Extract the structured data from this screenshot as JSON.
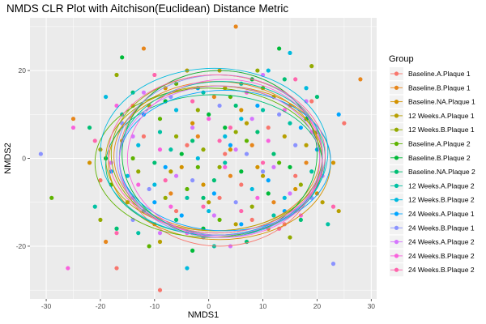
{
  "chart_data": {
    "type": "scatter",
    "title": "NMDS CLR Plot with Aitchison(Euclidean) Distance Metric",
    "xlabel": "NMDS1",
    "ylabel": "NMDS2",
    "xlim": [
      -33,
      31
    ],
    "ylim": [
      -32,
      32
    ],
    "xticks": [
      -30,
      -20,
      -10,
      0,
      10,
      20,
      30
    ],
    "yticks": [
      -20,
      0,
      20
    ],
    "grid": true,
    "legend": {
      "title": "Group",
      "position": "right"
    },
    "series": [
      {
        "name": "Baseline.A.Plaque 1",
        "color": "#F8766D",
        "ellipse": {
          "cx": 2.0,
          "cy": 0.0,
          "rx": 18.5,
          "ry": 20.0
        },
        "points": [
          [
            -17,
            -25
          ],
          [
            8,
            -14
          ],
          [
            19,
            13
          ],
          [
            14,
            -15
          ],
          [
            -9,
            -30
          ],
          [
            -4,
            3
          ],
          [
            3,
            1
          ],
          [
            6,
            -6
          ],
          [
            -12,
            5
          ],
          [
            11,
            7
          ],
          [
            25,
            8
          ],
          [
            2,
            -9
          ],
          [
            -6,
            -12
          ],
          [
            16,
            -4
          ],
          [
            -20,
            -5
          ]
        ]
      },
      {
        "name": "Baseline.B.Plaque 1",
        "color": "#E7861B",
        "ellipse": {
          "cx": 1.5,
          "cy": 0.5,
          "rx": 19.0,
          "ry": 17.0
        },
        "points": [
          [
            5,
            30
          ],
          [
            -19,
            -19
          ],
          [
            -12,
            25
          ],
          [
            28,
            18
          ],
          [
            -25,
            9
          ],
          [
            4,
            -4
          ],
          [
            -2,
            5
          ],
          [
            8,
            3
          ],
          [
            -7,
            -8
          ],
          [
            12,
            -10
          ],
          [
            15,
            12
          ],
          [
            -14,
            12
          ],
          [
            1,
            14
          ],
          [
            18,
            -1
          ],
          [
            -3,
            -17
          ]
        ]
      },
      {
        "name": "Baseline.NA.Plaque 1",
        "color": "#D39200",
        "ellipse": {
          "cx": 2.0,
          "cy": -1.0,
          "rx": 20.5,
          "ry": 17.5
        },
        "points": [
          [
            -22,
            -1
          ],
          [
            -3,
            8
          ],
          [
            9,
            -2
          ],
          [
            16,
            -7
          ],
          [
            -10,
            -15
          ],
          [
            2,
            20
          ],
          [
            20,
            -8
          ],
          [
            -16,
            4
          ],
          [
            6,
            11
          ],
          [
            -1,
            -6
          ],
          [
            11,
            -16
          ],
          [
            -8,
            16
          ],
          [
            23,
            -1
          ],
          [
            4,
            2
          ],
          [
            -5,
            -2
          ]
        ]
      },
      {
        "name": "12 Weeks.A.Plaque 1",
        "color": "#B79F00",
        "ellipse": {
          "cx": 1.0,
          "cy": 0.0,
          "rx": 20.0,
          "ry": 16.5
        },
        "points": [
          [
            -20,
            2
          ],
          [
            -7,
            -3
          ],
          [
            14,
            5
          ],
          [
            21,
            -10
          ],
          [
            -11,
            12
          ],
          [
            0,
            -10
          ],
          [
            7,
            8
          ],
          [
            -15,
            -10
          ],
          [
            10,
            -4
          ],
          [
            3,
            16
          ],
          [
            -4,
            20
          ],
          [
            18,
            3
          ],
          [
            -9,
            -19
          ],
          [
            5,
            -15
          ],
          [
            24,
            -12
          ]
        ]
      },
      {
        "name": "12 Weeks.B.Plaque 1",
        "color": "#93AA00",
        "ellipse": {
          "cx": 1.5,
          "cy": 1.0,
          "rx": 19.5,
          "ry": 18.0
        },
        "points": [
          [
            -17,
            19
          ],
          [
            -6,
            5
          ],
          [
            2,
            -2
          ],
          [
            12,
            14
          ],
          [
            -13,
            -3
          ],
          [
            8,
            -11
          ],
          [
            -2,
            11
          ],
          [
            17,
            -6
          ],
          [
            -20,
            -14
          ],
          [
            5,
            6
          ],
          [
            15,
            -18
          ],
          [
            -8,
            -9
          ],
          [
            19,
            21
          ],
          [
            -1,
            2
          ],
          [
            9,
            20
          ]
        ]
      },
      {
        "name": "Baseline.A.Plaque 2",
        "color": "#5EB300",
        "ellipse": {
          "cx": 0.0,
          "cy": -1.0,
          "rx": 21.0,
          "ry": 17.0
        },
        "points": [
          [
            -29,
            -9
          ],
          [
            -14,
            0
          ],
          [
            -4,
            -7
          ],
          [
            7,
            4
          ],
          [
            13,
            -1
          ],
          [
            -9,
            9
          ],
          [
            2,
            -14
          ],
          [
            20,
            6
          ],
          [
            -18,
            -6
          ],
          [
            4,
            14
          ],
          [
            -11,
            -20
          ],
          [
            10,
            16
          ],
          [
            -2,
            -2
          ],
          [
            16,
            -12
          ],
          [
            -6,
            17
          ]
        ]
      },
      {
        "name": "Baseline.B.Plaque 2",
        "color": "#00BA38",
        "ellipse": {
          "cx": 2.0,
          "cy": 1.0,
          "rx": 18.0,
          "ry": 19.0
        },
        "points": [
          [
            -16,
            23
          ],
          [
            -5,
            1
          ],
          [
            6,
            -3
          ],
          [
            13,
            25
          ],
          [
            -12,
            -12
          ],
          [
            3,
            7
          ],
          [
            11,
            -8
          ],
          [
            -8,
            13
          ],
          [
            18,
            9
          ],
          [
            -1,
            -16
          ],
          [
            8,
            18
          ],
          [
            -19,
            0
          ],
          [
            15,
            -2
          ],
          [
            0,
            10
          ],
          [
            -3,
            -21
          ]
        ]
      },
      {
        "name": "Baseline.NA.Plaque 2",
        "color": "#00BF74",
        "ellipse": {
          "cx": 1.0,
          "cy": -1.5,
          "rx": 20.0,
          "ry": 16.0
        },
        "points": [
          [
            -22,
            7
          ],
          [
            -10,
            -1
          ],
          [
            1,
            -5
          ],
          [
            9,
            6
          ],
          [
            17,
            -14
          ],
          [
            -6,
            -14
          ],
          [
            5,
            12
          ],
          [
            -14,
            15
          ],
          [
            12,
            1
          ],
          [
            -3,
            4
          ],
          [
            20,
            14
          ],
          [
            -17,
            -16
          ],
          [
            7,
            -19
          ],
          [
            -1,
            -9
          ],
          [
            14,
            18
          ]
        ]
      },
      {
        "name": "12 Weeks.A.Plaque 2",
        "color": "#00C1A3",
        "ellipse": {
          "cx": 2.5,
          "cy": 0.0,
          "rx": 19.0,
          "ry": 17.5
        },
        "points": [
          [
            -21,
            -11
          ],
          [
            -9,
            6
          ],
          [
            3,
            -1
          ],
          [
            10,
            11
          ],
          [
            19,
            -3
          ],
          [
            -13,
            -17
          ],
          [
            6,
            17
          ],
          [
            -4,
            -9
          ],
          [
            15,
            8
          ],
          [
            -1,
            15
          ],
          [
            22,
            -15
          ],
          [
            -7,
            2
          ],
          [
            12,
            -13
          ],
          [
            1,
            -20
          ],
          [
            -16,
            10
          ]
        ]
      },
      {
        "name": "12 Weeks.B.Plaque 2",
        "color": "#00BADE",
        "ellipse": {
          "cx": 1.0,
          "cy": 1.5,
          "rx": 21.0,
          "ry": 19.0
        },
        "points": [
          [
            -4,
            -25
          ],
          [
            15,
            24
          ],
          [
            -19,
            14
          ],
          [
            3,
            5
          ],
          [
            -10,
            -6
          ],
          [
            8,
            -7
          ],
          [
            18,
            16
          ],
          [
            -13,
            3
          ],
          [
            0,
            -12
          ],
          [
            11,
            20
          ],
          [
            -6,
            11
          ],
          [
            14,
            -9
          ],
          [
            -2,
            0
          ],
          [
            6,
            9
          ],
          [
            -15,
            -4
          ]
        ]
      },
      {
        "name": "24 Weeks.A.Plaque 1",
        "color": "#00A5FF",
        "ellipse": {
          "cx": 3.0,
          "cy": -0.5,
          "rx": 19.5,
          "ry": 16.0
        },
        "points": [
          [
            -18,
            -3
          ],
          [
            -8,
            -2
          ],
          [
            4,
            3
          ],
          [
            11,
            -5
          ],
          [
            17,
            7
          ],
          [
            -12,
            10
          ],
          [
            1,
            -8
          ],
          [
            9,
            12
          ],
          [
            -5,
            -13
          ],
          [
            14,
            -12
          ],
          [
            20,
            2
          ],
          [
            -2,
            16
          ],
          [
            6,
            -15
          ],
          [
            -10,
            -10
          ],
          [
            24,
            10
          ]
        ]
      },
      {
        "name": "24 Weeks.B.Plaque 1",
        "color": "#8B93FF",
        "ellipse": {
          "cx": 2.0,
          "cy": 0.5,
          "rx": 19.0,
          "ry": 18.5
        },
        "points": [
          [
            -31,
            1
          ],
          [
            23,
            -24
          ],
          [
            -3,
            -5
          ],
          [
            7,
            1
          ],
          [
            13,
            10
          ],
          [
            -11,
            -7
          ],
          [
            2,
            12
          ],
          [
            19,
            -9
          ],
          [
            -16,
            8
          ],
          [
            5,
            -10
          ],
          [
            -7,
            14
          ],
          [
            16,
            3
          ],
          [
            -1,
            -18
          ],
          [
            10,
            -3
          ],
          [
            -14,
            -14
          ]
        ]
      },
      {
        "name": "24 Weeks.A.Plaque 2",
        "color": "#D575FE",
        "ellipse": {
          "cx": 2.0,
          "cy": -0.5,
          "rx": 18.5,
          "ry": 17.0
        },
        "points": [
          [
            -18,
            -1
          ],
          [
            -6,
            -4
          ],
          [
            5,
            2
          ],
          [
            12,
            -2
          ],
          [
            18,
            13
          ],
          [
            -12,
            15
          ],
          [
            1,
            -13
          ],
          [
            8,
            9
          ],
          [
            -9,
            -17
          ],
          [
            15,
            -8
          ],
          [
            -3,
            7
          ],
          [
            21,
            -4
          ],
          [
            4,
            -20
          ],
          [
            -14,
            5
          ],
          [
            10,
            19
          ]
        ]
      },
      {
        "name": "24 Weeks.B.Plaque 2",
        "color": "#F962DD",
        "ellipse": {
          "cx": 3.0,
          "cy": 0.0,
          "rx": 18.0,
          "ry": 18.0
        },
        "points": [
          [
            -26,
            -25
          ],
          [
            -25,
            7
          ],
          [
            -9,
            2
          ],
          [
            3,
            -2
          ],
          [
            11,
            4
          ],
          [
            17,
            -13
          ],
          [
            -7,
            -11
          ],
          [
            7,
            15
          ],
          [
            -13,
            -6
          ],
          [
            14,
            11
          ],
          [
            0,
            9
          ],
          [
            -4,
            -17
          ],
          [
            9,
            -9
          ],
          [
            19,
            6
          ],
          [
            -17,
            12
          ]
        ]
      },
      {
        "name": "24 Weeks.B.Plaque 2",
        "color": "#FF65AC",
        "ellipse": {
          "cx": 1.5,
          "cy": 1.0,
          "rx": 20.0,
          "ry": 18.0
        },
        "points": [
          [
            -21,
            4
          ],
          [
            -8,
            -5
          ],
          [
            2,
            4
          ],
          [
            10,
            -1
          ],
          [
            16,
            18
          ],
          [
            -14,
            -9
          ],
          [
            6,
            -12
          ],
          [
            13,
            -16
          ],
          [
            -3,
            13
          ],
          [
            20,
            -6
          ],
          [
            -10,
            19
          ],
          [
            4,
            7
          ],
          [
            -1,
            -11
          ],
          [
            23,
            -11
          ],
          [
            -17,
            -17
          ]
        ]
      }
    ]
  }
}
